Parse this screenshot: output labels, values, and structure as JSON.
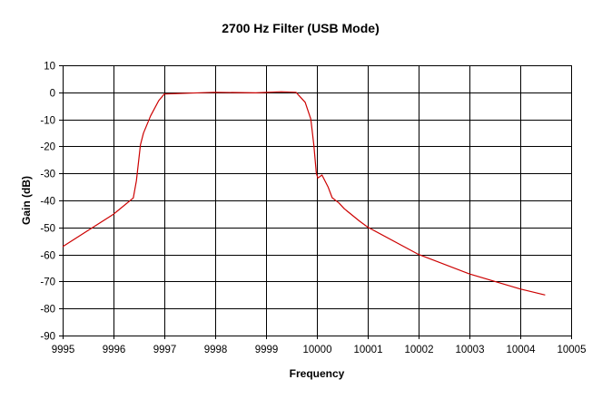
{
  "chart_data": {
    "type": "line",
    "title": "2700 Hz Filter (USB Mode)",
    "xlabel": "Frequency",
    "ylabel": "Gain (dB)",
    "xlim": [
      9995,
      10005
    ],
    "ylim": [
      -90,
      10
    ],
    "xticks": [
      9995,
      9996,
      9997,
      9998,
      9999,
      10000,
      10001,
      10002,
      10003,
      10004,
      10005
    ],
    "yticks": [
      10,
      0,
      -10,
      -20,
      -30,
      -40,
      -50,
      -60,
      -70,
      -80,
      -90
    ],
    "grid": true,
    "legend": "none",
    "series": [
      {
        "name": "Gain",
        "color": "#cc0000",
        "x": [
          9995,
          9996,
          9996.39,
          9996.45,
          9996.53,
          9996.59,
          9996.73,
          9996.89,
          9997.0,
          9997.5,
          9998,
          9998.8,
          9999.3,
          9999.59,
          9999.77,
          9999.88,
          9999.94,
          9999.99,
          10000.02,
          10000.1,
          10000.22,
          10000.3,
          10000.43,
          10000.54,
          10000.84,
          10001,
          10002,
          10003,
          10004,
          10004.49
        ],
        "y": [
          -57.1,
          -45.1,
          -39.1,
          -32.8,
          -19.4,
          -15.1,
          -8.7,
          -3.1,
          -0.6,
          -0.3,
          0,
          -0.2,
          0.2,
          0,
          -3.7,
          -9.9,
          -19.4,
          -30,
          -31.7,
          -30.6,
          -35,
          -39,
          -40.9,
          -43.1,
          -47.7,
          -49.9,
          -60,
          -67.2,
          -72.8,
          -75
        ]
      }
    ]
  }
}
